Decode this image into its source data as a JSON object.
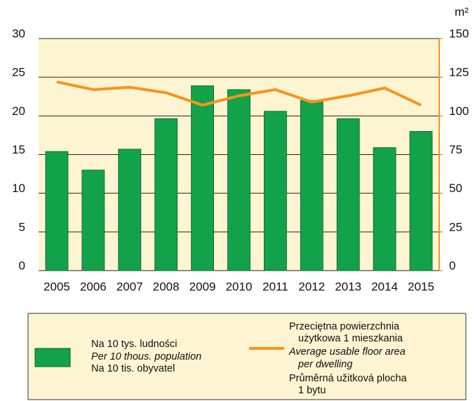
{
  "chart_data": {
    "type": "bar_line",
    "categories": [
      "2005",
      "2006",
      "2007",
      "2008",
      "2009",
      "2010",
      "2011",
      "2012",
      "2013",
      "2014",
      "2015"
    ],
    "series": [
      {
        "name": "Na 10 tys. ludności",
        "name_lines": [
          "Na 10 tys. ludności",
          "Per 10 thous. population",
          "Na 10 tis. obyvatel"
        ],
        "type": "bar",
        "color": "#12a24a",
        "values": [
          15.4,
          13.0,
          15.7,
          19.65,
          23.9,
          23.4,
          20.6,
          22.0,
          19.65,
          15.9,
          18.0
        ]
      },
      {
        "name": "Przeciętna powierzchnia",
        "name_lines": [
          "Przeciętna powierzchnia",
          "użytkowa 1 mieszkania",
          "Average usable floor area",
          "per dwelling",
          "Průměrná užitková plocha",
          "1 bytu"
        ],
        "type": "line",
        "axis": "y2",
        "color": "#f7941d",
        "values": [
          122,
          117,
          118.5,
          115,
          107,
          113,
          117,
          109,
          113,
          118,
          107
        ]
      }
    ],
    "ylim": [
      0,
      30
    ],
    "yticks": [
      0,
      5,
      10,
      15,
      20,
      25,
      30
    ],
    "y2lim": [
      0,
      150
    ],
    "y2ticks": [
      0,
      25,
      50,
      75,
      100,
      125,
      150
    ],
    "y2label": "m²",
    "grid": true,
    "background": "#fdf5d2"
  }
}
